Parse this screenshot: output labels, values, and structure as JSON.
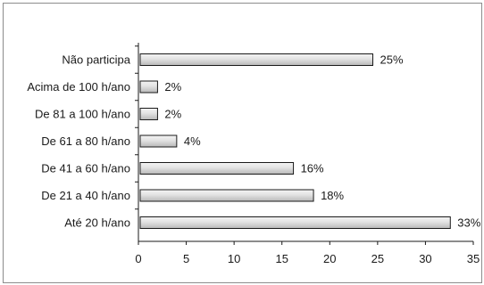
{
  "chart_data": {
    "type": "bar",
    "orientation": "horizontal",
    "title": "",
    "xlabel": "",
    "ylabel": "",
    "categories": [
      "Não participa",
      "Acima de 100 h/ano",
      "De 81 a 100 h/ano",
      "De 61 a 80 h/ano",
      "De 41 a 60 h/ano",
      "De 21 a 40 h/ano",
      "Até 20 h/ano"
    ],
    "values": [
      24.5,
      2,
      2,
      4,
      16.2,
      18.3,
      32.6
    ],
    "data_labels": [
      "25%",
      "2%",
      "2%",
      "4%",
      "16%",
      "18%",
      "33%"
    ],
    "xlim": [
      0,
      35
    ],
    "xticks": [
      0,
      5,
      10,
      15,
      20,
      25,
      30,
      35
    ],
    "grid": false,
    "legend": "none",
    "bar_fill_top": "#f4f4f4",
    "bar_fill_bottom": "#b8b8b8",
    "bar_stroke": "#1a1a1a"
  }
}
